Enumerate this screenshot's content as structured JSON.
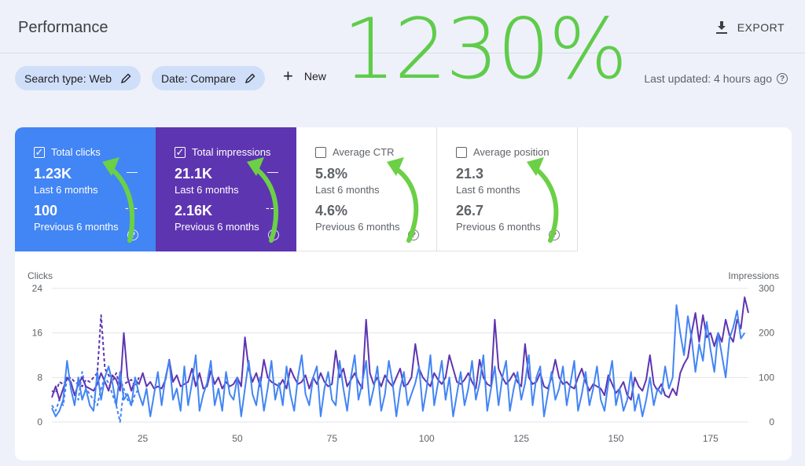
{
  "header": {
    "title": "Performance",
    "export_label": "EXPORT"
  },
  "overlay": {
    "big_text": "1230%",
    "color": "#5fcc4b"
  },
  "filters": {
    "search_type": "Search type: Web",
    "date": "Date: Compare",
    "new_label": "New",
    "last_updated": "Last updated: 4 hours ago"
  },
  "metrics": [
    {
      "label": "Total clicks",
      "current": "1.23K",
      "current_period": "Last 6 months",
      "previous": "100",
      "previous_period": "Previous 6 months",
      "checked": true,
      "color": "#4285f4"
    },
    {
      "label": "Total impressions",
      "current": "21.1K",
      "current_period": "Last 6 months",
      "previous": "2.16K",
      "previous_period": "Previous 6 months",
      "checked": true,
      "color": "#5e35b1"
    },
    {
      "label": "Average CTR",
      "current": "5.8%",
      "current_period": "Last 6 months",
      "previous": "4.6%",
      "previous_period": "Previous 6 months",
      "checked": false
    },
    {
      "label": "Average position",
      "current": "21.3",
      "current_period": "Last 6 months",
      "previous": "26.7",
      "previous_period": "Previous 6 months",
      "checked": false
    }
  ],
  "chart_data": {
    "type": "line",
    "left_axis_label": "Clicks",
    "right_axis_label": "Impressions",
    "left_ylim": [
      0,
      24
    ],
    "right_ylim": [
      0,
      300
    ],
    "left_ticks": [
      "0",
      "8",
      "16",
      "24"
    ],
    "right_ticks": [
      "0",
      "100",
      "200",
      "300"
    ],
    "x_ticks": [
      "25",
      "50",
      "75",
      "100",
      "125",
      "150",
      "175"
    ],
    "xlim": [
      1,
      185
    ],
    "series": [
      {
        "name": "Clicks (Last 6 months)",
        "axis": "left",
        "color": "#4285f4",
        "style": "solid",
        "y": [
          2.5,
          1,
          2,
          4,
          11,
          6,
          3,
          8,
          4,
          6,
          3,
          2,
          9,
          4,
          8,
          10,
          7,
          3,
          9,
          4,
          5,
          3,
          8,
          5,
          3,
          6,
          1,
          5,
          9,
          3,
          8,
          11,
          4,
          6,
          2,
          10,
          3,
          7,
          12,
          2,
          5,
          7,
          11,
          3,
          6,
          2,
          9,
          5,
          4,
          8,
          1,
          6,
          11,
          5,
          3,
          8,
          2,
          6,
          11,
          4,
          7,
          3,
          10,
          5,
          2,
          8,
          12,
          5,
          3,
          8,
          10,
          1,
          6,
          9,
          4,
          3,
          11,
          6,
          2,
          8,
          12,
          4,
          7,
          11,
          3,
          6,
          10,
          2,
          5,
          11,
          7,
          1,
          6,
          9,
          3,
          5,
          7,
          10,
          2,
          6,
          12,
          3,
          7,
          11,
          4,
          8,
          1,
          5,
          9,
          3,
          6,
          11,
          4,
          7,
          12,
          2,
          6,
          10,
          3,
          8,
          11,
          2,
          6,
          9,
          4,
          7,
          12,
          3,
          8,
          10,
          1,
          5,
          9,
          4,
          6,
          10,
          3,
          7,
          11,
          2,
          5,
          9,
          3,
          6,
          10,
          4,
          2,
          7,
          11,
          3,
          6,
          2,
          4,
          9,
          2,
          5,
          1,
          4,
          8,
          3,
          6,
          5,
          10,
          6,
          8,
          21,
          16,
          12,
          19,
          15,
          9,
          14,
          11,
          18,
          13,
          9,
          16,
          12,
          8,
          15,
          17,
          20,
          15,
          16
        ]
      },
      {
        "name": "Impressions (Last 6 months)",
        "axis": "right",
        "color": "#5e35b1",
        "style": "solid",
        "y": [
          55,
          80,
          50,
          75,
          100,
          90,
          60,
          85,
          100,
          80,
          75,
          70,
          85,
          110,
          90,
          70,
          105,
          95,
          70,
          200,
          100,
          70,
          95,
          85,
          110,
          80,
          90,
          75,
          80,
          75,
          95,
          140,
          90,
          105,
          80,
          85,
          90,
          120,
          80,
          110,
          75,
          80,
          115,
          85,
          100,
          75,
          90,
          80,
          85,
          100,
          80,
          190,
          120,
          90,
          110,
          80,
          140,
          100,
          90,
          85,
          80,
          95,
          75,
          120,
          100,
          85,
          90,
          105,
          75,
          100,
          85,
          110,
          90,
          80,
          85,
          160,
          100,
          120,
          80,
          95,
          110,
          90,
          75,
          230,
          110,
          85,
          100,
          80,
          105,
          90,
          80,
          100,
          120,
          80,
          85,
          100,
          175,
          120,
          100,
          90,
          80,
          110,
          95,
          85,
          100,
          150,
          120,
          90,
          85,
          95,
          110,
          90,
          75,
          140,
          100,
          85,
          80,
          230,
          120,
          100,
          85,
          95,
          110,
          90,
          80,
          175,
          100,
          85,
          90,
          110,
          80,
          75,
          100,
          140,
          100,
          85,
          90,
          80,
          75,
          100,
          120,
          90,
          70,
          85,
          80,
          75,
          60,
          105,
          85,
          65,
          75,
          90,
          60,
          50,
          100,
          80,
          70,
          95,
          150,
          85,
          70,
          85,
          60,
          55,
          75,
          60,
          110,
          130,
          145,
          200,
          245,
          180,
          240,
          190,
          200,
          170,
          200,
          180,
          230,
          195,
          180,
          230,
          210,
          280,
          245
        ]
      },
      {
        "name": "Clicks (Previous 6 months)",
        "axis": "left",
        "color": "#4285f4",
        "style": "dashed",
        "y": [
          3,
          2,
          4,
          3,
          8,
          7,
          5,
          4,
          9,
          6,
          5,
          4,
          3,
          6,
          8,
          7,
          5,
          3,
          0,
          6,
          4,
          3,
          5,
          6
        ]
      },
      {
        "name": "Impressions (Previous 6 months)",
        "axis": "right",
        "color": "#5e35b1",
        "style": "dashed",
        "y": [
          70,
          65,
          90,
          85,
          95,
          100,
          90,
          85,
          80,
          95,
          90,
          100,
          110,
          240,
          120,
          105,
          90,
          110,
          80,
          85,
          90,
          95,
          80,
          100
        ]
      }
    ]
  }
}
